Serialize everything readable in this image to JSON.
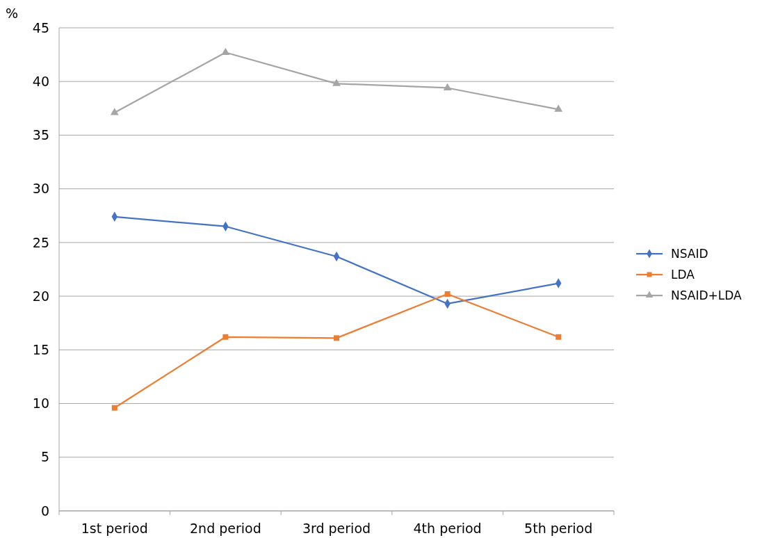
{
  "chart_data": {
    "type": "line",
    "ylabel": "%",
    "categories": [
      "1st period",
      "2nd period",
      "3rd period",
      "4th period",
      "5th period"
    ],
    "series": [
      {
        "name": "NSAID",
        "color": "#4472c4",
        "marker": "diamond",
        "values": [
          27.4,
          26.5,
          23.7,
          19.3,
          21.2
        ]
      },
      {
        "name": "LDA",
        "color": "#ed7d31",
        "marker": "square",
        "values": [
          9.6,
          16.2,
          16.1,
          20.2,
          16.2
        ]
      },
      {
        "name": "NSAID+LDA",
        "color": "#a5a5a5",
        "marker": "triangle",
        "values": [
          37.1,
          42.7,
          39.8,
          39.4,
          37.4
        ]
      }
    ],
    "ylim": [
      0,
      45
    ],
    "yticks": [
      0,
      5,
      10,
      15,
      20,
      25,
      30,
      35,
      40,
      45
    ],
    "grid": "y",
    "legend": "right",
    "line_style": "solid"
  }
}
